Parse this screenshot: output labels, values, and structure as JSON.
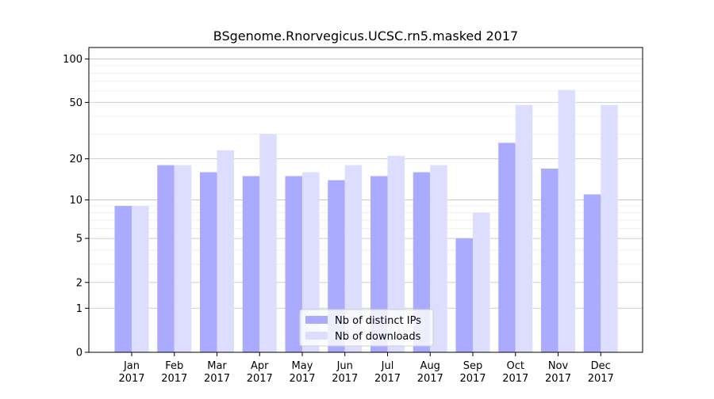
{
  "chart_data": {
    "type": "bar",
    "title": "BSgenome.Rnorvegicus.UCSC.rn5.masked 2017",
    "xlabel": "",
    "ylabel": "",
    "y_scale": "log(1+y)",
    "ylim": [
      0,
      120
    ],
    "y_ticks": [
      0,
      1,
      2,
      5,
      10,
      20,
      50,
      100
    ],
    "grid": "horizontal",
    "legend_position": "bottom-center",
    "categories": [
      "Jan\n2017",
      "Feb\n2017",
      "Mar\n2017",
      "Apr\n2017",
      "May\n2017",
      "Jun\n2017",
      "Jul\n2017",
      "Aug\n2017",
      "Sep\n2017",
      "Oct\n2017",
      "Nov\n2017",
      "Dec\n2017"
    ],
    "series": [
      {
        "name": "Nb of distinct IPs",
        "color": "#aaaaff",
        "values": [
          9,
          18,
          16,
          15,
          15,
          14,
          15,
          16,
          5,
          26,
          17,
          11
        ]
      },
      {
        "name": "Nb of downloads",
        "color": "#ddddff",
        "values": [
          9,
          18,
          23,
          30,
          16,
          18,
          21,
          18,
          8,
          48,
          61,
          48
        ]
      }
    ]
  }
}
